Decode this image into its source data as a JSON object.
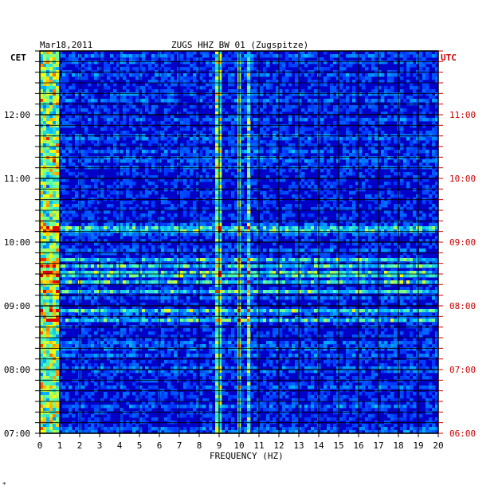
{
  "chart_data": {
    "type": "heatmap",
    "date": "Mar18,2011",
    "title": "ZUGS HHZ BW 01 (Zugspitze)",
    "xlabel": "FREQUENCY (HZ)",
    "left_label": "CET",
    "right_label": "UTC",
    "xlim": [
      0,
      20
    ],
    "x_ticks": [
      "0",
      "1",
      "2",
      "3",
      "4",
      "5",
      "6",
      "7",
      "8",
      "9",
      "10",
      "11",
      "12",
      "13",
      "14",
      "15",
      "16",
      "17",
      "18",
      "19",
      "20"
    ],
    "left_time_ticks": [
      "12:00",
      "11:00",
      "10:00",
      "09:00",
      "08:00",
      "07:00"
    ],
    "right_time_ticks": [
      "11:00",
      "10:00",
      "09:00",
      "08:00",
      "07:00",
      "06:00"
    ],
    "time_range_cet": [
      "07:00",
      "13:00"
    ],
    "grid": true,
    "colors": {
      "background": "#0000c8",
      "axis": "#000000",
      "utc": "#cc0000"
    },
    "bright_rows_cet": [
      "09:22",
      "09:14",
      "08:47",
      "08:55",
      "09:43",
      "09:38",
      "09:30",
      "10:12"
    ],
    "notable_features": [
      {
        "label": "9 Hz line",
        "freq_hz": 9.0
      },
      {
        "label": "10 Hz line",
        "freq_hz": 10.0
      },
      {
        "label": "10.5 Hz line",
        "freq_hz": 10.5
      }
    ]
  },
  "corner_mark": "*"
}
